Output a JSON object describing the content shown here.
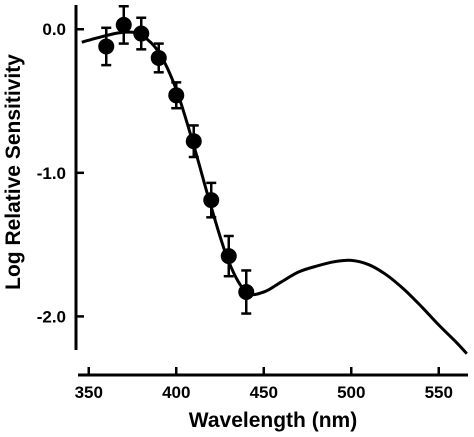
{
  "chart_data": {
    "type": "scatter",
    "title": "",
    "xlabel": "Wavelength (nm)",
    "ylabel": "Log Relative Sensitivity",
    "xlim": [
      345,
      565
    ],
    "ylim": [
      -2.22,
      0.12
    ],
    "x_ticks": [
      350,
      400,
      450,
      500,
      550
    ],
    "y_ticks": [
      0.0,
      -1.0,
      -2.0
    ],
    "x_tick_labels": [
      "350",
      "400",
      "450",
      "500",
      "550"
    ],
    "y_tick_labels": [
      "0.0",
      "-1.0",
      "-2.0"
    ],
    "grid": false,
    "legend": "none",
    "points": [
      {
        "x": 360,
        "y": -0.12,
        "err": 0.13
      },
      {
        "x": 370,
        "y": 0.03,
        "err": 0.13
      },
      {
        "x": 380,
        "y": -0.03,
        "err": 0.11
      },
      {
        "x": 390,
        "y": -0.2,
        "err": 0.1
      },
      {
        "x": 400,
        "y": -0.46,
        "err": 0.09
      },
      {
        "x": 410,
        "y": -0.78,
        "err": 0.11
      },
      {
        "x": 420,
        "y": -1.19,
        "err": 0.12
      },
      {
        "x": 430,
        "y": -1.58,
        "err": 0.14
      },
      {
        "x": 440,
        "y": -1.83,
        "err": 0.15
      }
    ],
    "fit_curve": {
      "x": [
        346,
        355,
        365,
        372,
        380,
        390,
        400,
        410,
        420,
        430,
        440,
        450,
        460,
        470,
        480,
        490,
        500,
        510,
        520,
        530,
        540,
        550,
        560,
        566
      ],
      "y": [
        -0.09,
        -0.06,
        -0.03,
        -0.02,
        -0.04,
        -0.16,
        -0.42,
        -0.81,
        -1.24,
        -1.62,
        -1.83,
        -1.83,
        -1.76,
        -1.69,
        -1.65,
        -1.62,
        -1.61,
        -1.64,
        -1.71,
        -1.81,
        -1.93,
        -2.06,
        -2.18,
        -2.26
      ]
    }
  }
}
